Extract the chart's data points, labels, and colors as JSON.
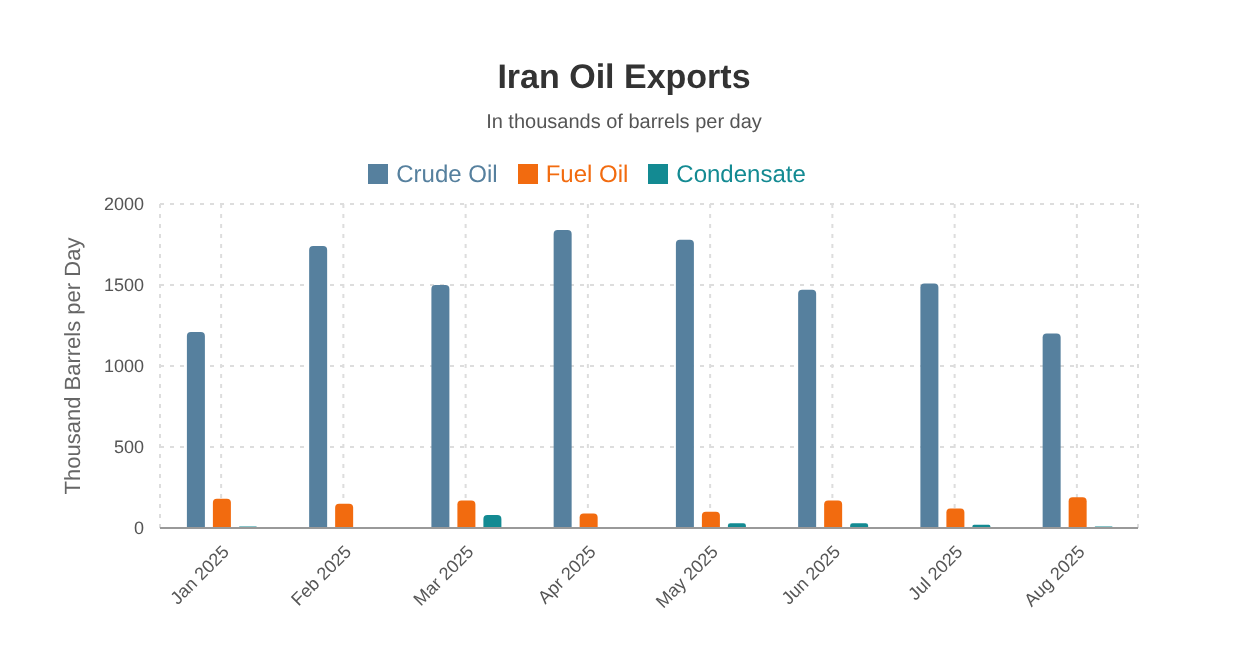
{
  "chart_data": {
    "type": "bar",
    "title": "Iran Oil Exports",
    "subtitle": "In thousands of barrels per day",
    "ylabel": "Thousand Barrels per Day",
    "categories": [
      "Jan 2025",
      "Feb 2025",
      "Mar 2025",
      "Apr 2025",
      "May 2025",
      "Jun 2025",
      "Jul 2025",
      "Aug 2025"
    ],
    "series": [
      {
        "name": "Crude Oil",
        "color": "#56809e",
        "values": [
          1210,
          1740,
          1500,
          1840,
          1780,
          1470,
          1510,
          1200
        ]
      },
      {
        "name": "Fuel Oil",
        "color": "#f26b0f",
        "values": [
          180,
          150,
          170,
          90,
          100,
          170,
          120,
          190
        ]
      },
      {
        "name": "Condensate",
        "color": "#138a92",
        "values": [
          10,
          null,
          80,
          null,
          30,
          30,
          20,
          10
        ]
      }
    ],
    "ylim": [
      0,
      2000
    ],
    "yticks": [
      0,
      500,
      1000,
      1500,
      2000
    ],
    "grid": true,
    "legend": "top"
  }
}
